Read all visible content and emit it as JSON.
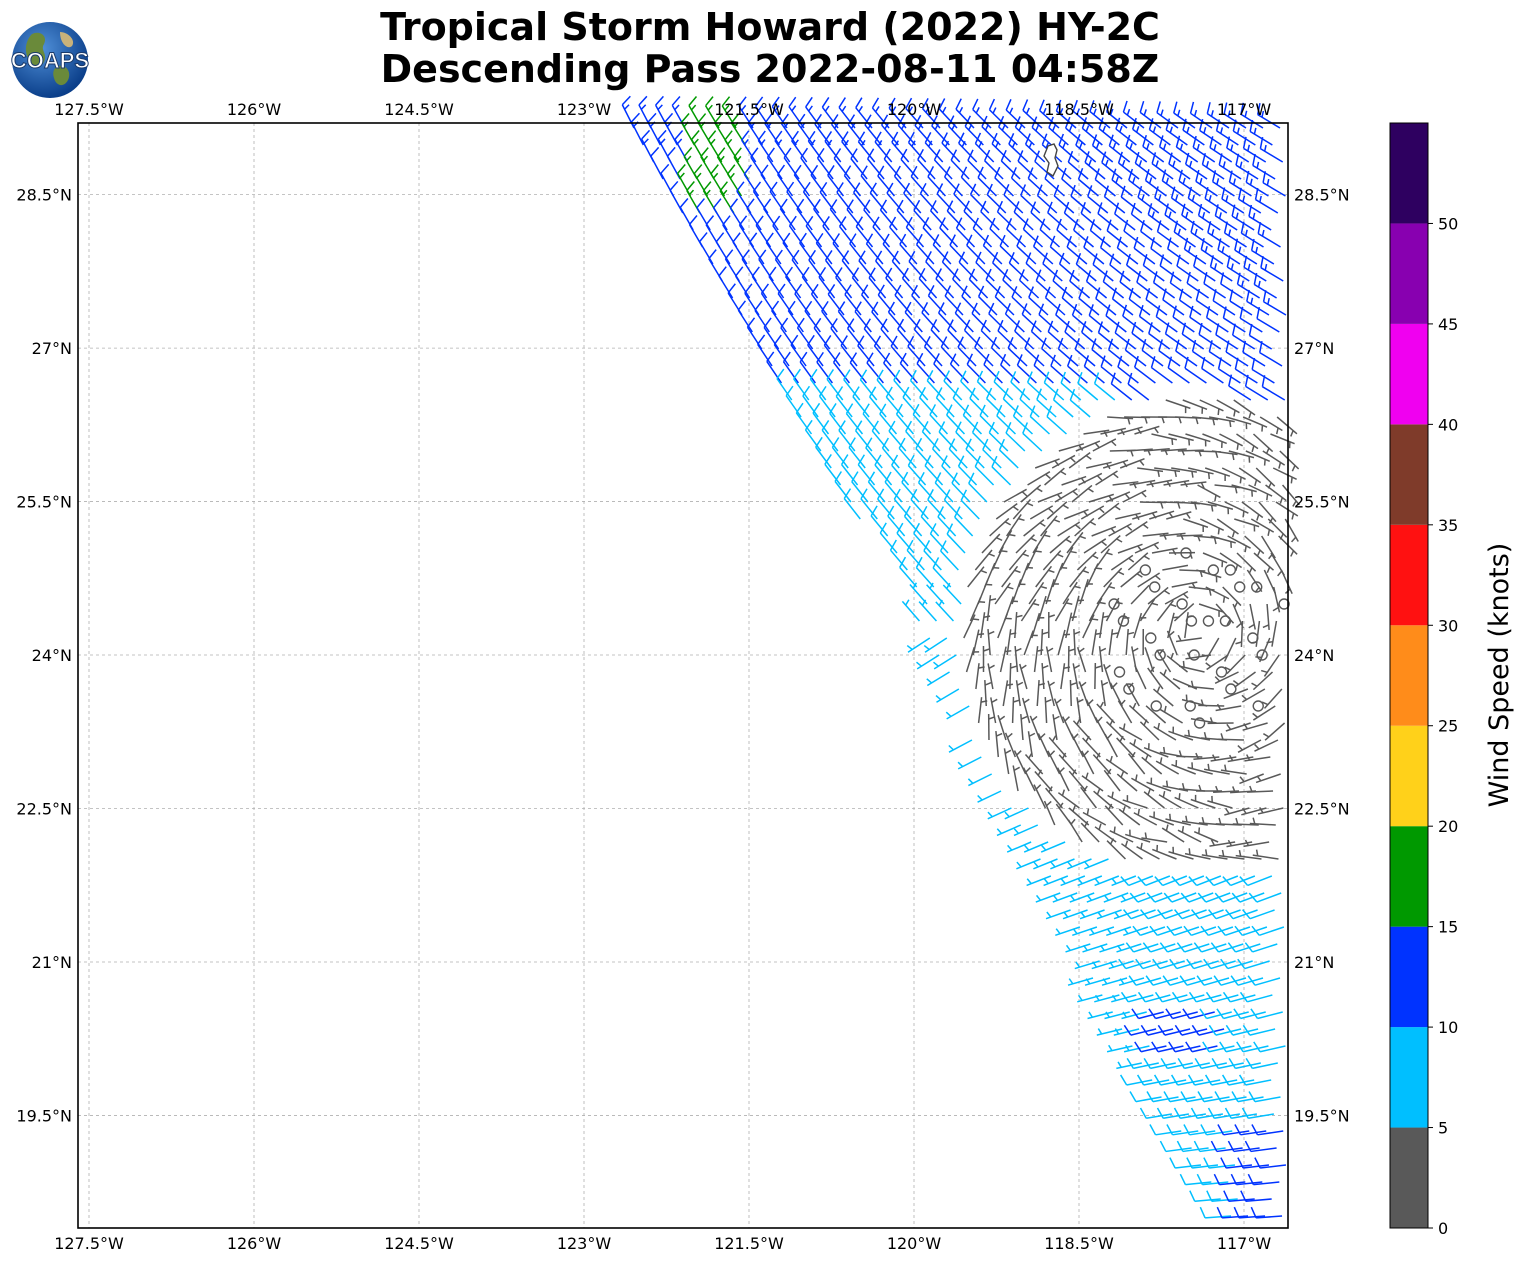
{
  "title": {
    "line1": "Tropical Storm Howard (2022) HY-2C",
    "line2": "Descending Pass 2022-08-11 04:58Z"
  },
  "logo": {
    "text": "COAPS",
    "icon": "globe-logo-icon"
  },
  "map": {
    "lon_range": [
      -127.6,
      -116.6
    ],
    "lat_range": [
      18.4,
      29.2
    ],
    "lon_ticks": [
      "127.5°W",
      "126°W",
      "124.5°W",
      "123°W",
      "121.5°W",
      "120°W",
      "118.5°W",
      "117°W"
    ],
    "lon_tick_values": [
      -127.5,
      -126,
      -124.5,
      -123,
      -121.5,
      -120,
      -118.5,
      -117
    ],
    "lat_ticks": [
      "28.5°N",
      "27°N",
      "25.5°N",
      "24°N",
      "22.5°N",
      "21°N",
      "19.5°N"
    ],
    "lat_tick_values": [
      28.5,
      27,
      25.5,
      24,
      22.5,
      21,
      19.5
    ],
    "grid": "dashed",
    "storm_center": {
      "lon": -117.4,
      "lat": 24.2
    }
  },
  "colorbar": {
    "label": "Wind Speed (knots)",
    "ticks": [
      "0",
      "5",
      "10",
      "15",
      "20",
      "25",
      "30",
      "35",
      "40",
      "45",
      "50"
    ],
    "bins": [
      {
        "min": 0,
        "max": 5,
        "color": "#595959"
      },
      {
        "min": 5,
        "max": 10,
        "color": "#00bfff"
      },
      {
        "min": 10,
        "max": 15,
        "color": "#0033ff"
      },
      {
        "min": 15,
        "max": 20,
        "color": "#009900"
      },
      {
        "min": 20,
        "max": 25,
        "color": "#ffd11a"
      },
      {
        "min": 25,
        "max": 30,
        "color": "#ff8c1a"
      },
      {
        "min": 30,
        "max": 35,
        "color": "#ff1111"
      },
      {
        "min": 35,
        "max": 40,
        "color": "#7f3b2a"
      },
      {
        "min": 40,
        "max": 45,
        "color": "#f000f0"
      },
      {
        "min": 45,
        "max": 50,
        "color": "#8800b0"
      },
      {
        "min": 50,
        "max": 55,
        "color": "#2e0060"
      }
    ]
  }
}
